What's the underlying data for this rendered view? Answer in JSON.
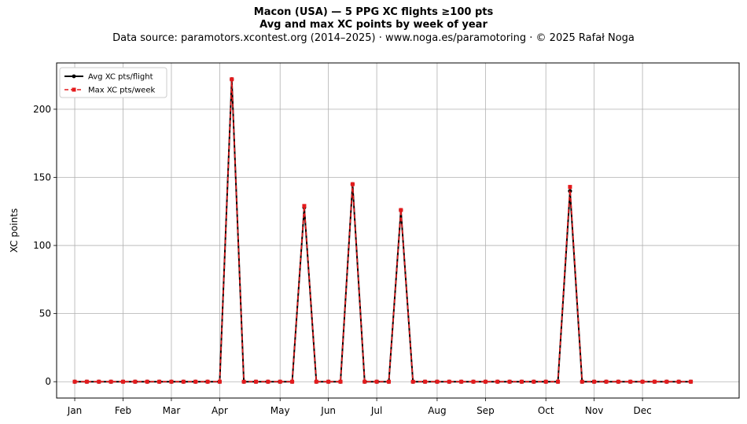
{
  "title_line1": "Macon (USA)  —  5 PPG XC flights ≥100 pts",
  "title_line2": "Avg and max XC points by week of year",
  "title_line3": "Data source: paramotors.xcontest.org (2014–2025)  ·  www.noga.es/paramotoring  ·  © 2025 Rafał Noga",
  "chart_data": {
    "type": "line",
    "title": "Macon (USA)  —  5 PPG XC flights ≥100 pts",
    "subtitle": "Avg and max XC points by week of year",
    "xlabel": "",
    "ylabel": "XC points",
    "x_axis": "week of year",
    "xlim": [
      -1.5,
      55
    ],
    "ylim": [
      -12,
      234
    ],
    "yticks": [
      0,
      50,
      100,
      150,
      200
    ],
    "month_ticks": [
      {
        "label": "Jan",
        "week": 0
      },
      {
        "label": "Feb",
        "week": 4
      },
      {
        "label": "Mar",
        "week": 8
      },
      {
        "label": "Apr",
        "week": 12
      },
      {
        "label": "May",
        "week": 17
      },
      {
        "label": "Jun",
        "week": 21
      },
      {
        "label": "Jul",
        "week": 25
      },
      {
        "label": "Aug",
        "week": 30
      },
      {
        "label": "Sep",
        "week": 34
      },
      {
        "label": "Oct",
        "week": 39
      },
      {
        "label": "Nov",
        "week": 43
      },
      {
        "label": "Dec",
        "week": 47
      }
    ],
    "grid": true,
    "legend_position": "top-left",
    "x": [
      0,
      1,
      2,
      3,
      4,
      5,
      6,
      7,
      8,
      9,
      10,
      11,
      12,
      13,
      14,
      15,
      16,
      17,
      18,
      19,
      20,
      21,
      22,
      23,
      24,
      25,
      26,
      27,
      28,
      29,
      30,
      31,
      32,
      33,
      34,
      35,
      36,
      37,
      38,
      39,
      40,
      41,
      42,
      43,
      44,
      45,
      46,
      47,
      48,
      49,
      50,
      51
    ],
    "series": [
      {
        "name": "Avg XC pts/flight",
        "color": "#000000",
        "style": "solid line, circle markers",
        "values": [
          0,
          0,
          0,
          0,
          0,
          0,
          0,
          0,
          0,
          0,
          0,
          0,
          0,
          222,
          0,
          0,
          0,
          0,
          0,
          128,
          0,
          0,
          0,
          145,
          0,
          0,
          0,
          126,
          0,
          0,
          0,
          0,
          0,
          0,
          0,
          0,
          0,
          0,
          0,
          0,
          0,
          140,
          0,
          0,
          0,
          0,
          0,
          0,
          0,
          0,
          0,
          0
        ]
      },
      {
        "name": "Max XC pts/week",
        "color": "#e41a1c",
        "style": "dashed line, square markers",
        "values": [
          0,
          0,
          0,
          0,
          0,
          0,
          0,
          0,
          0,
          0,
          0,
          0,
          0,
          222,
          0,
          0,
          0,
          0,
          0,
          129,
          0,
          0,
          0,
          145,
          0,
          0,
          0,
          126,
          0,
          0,
          0,
          0,
          0,
          0,
          0,
          0,
          0,
          0,
          0,
          0,
          0,
          143,
          0,
          0,
          0,
          0,
          0,
          0,
          0,
          0,
          0,
          0
        ]
      }
    ]
  }
}
